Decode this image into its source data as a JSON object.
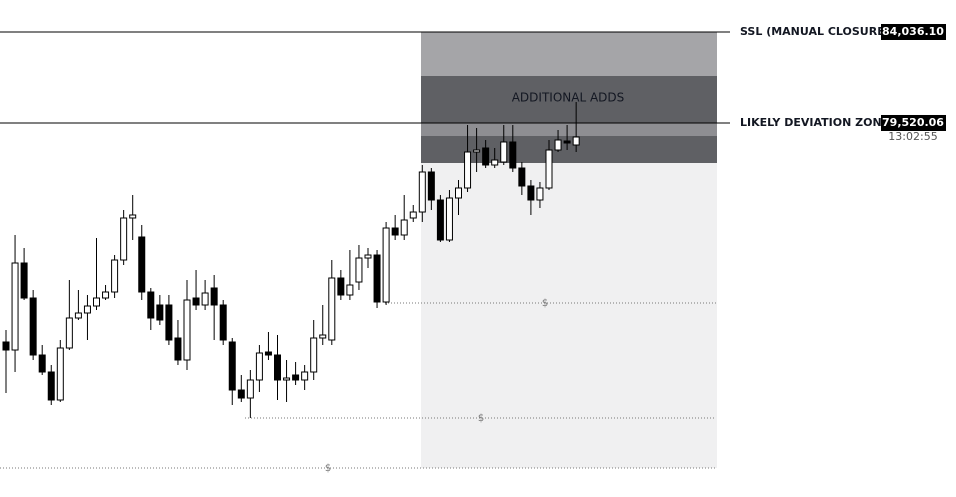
{
  "chart_data": {
    "type": "candlestick",
    "ylim": [
      60958,
      85624
    ],
    "up_color": "#ffffff",
    "down_color": "#000000",
    "open": [
      68651,
      68253,
      72571,
      70834,
      68005,
      67162,
      65772,
      68353,
      69842,
      70090,
      70437,
      70834,
      71132,
      72720,
      74805,
      73862,
      71132,
      70487,
      70487,
      68849,
      67757,
      70834,
      70487,
      71331,
      70487,
      68651,
      66268,
      65871,
      66765,
      68154,
      68005,
      66765,
      67013,
      66765,
      67162,
      68849,
      68750,
      71827,
      70983,
      71628,
      72819,
      72968,
      70636,
      74308,
      73961,
      74805,
      75102,
      77088,
      75698,
      73713,
      75797,
      76294,
      78080,
      78279,
      77435,
      77584,
      78577,
      77286,
      76393,
      75698,
      76294,
      78179,
      78626,
      78428
    ],
    "high": [
      69246,
      73961,
      73316,
      71231,
      68502,
      67509,
      68750,
      71728,
      71231,
      70983,
      73812,
      71479,
      72968,
      75202,
      75946,
      74457,
      71331,
      70983,
      70983,
      69742,
      71728,
      72224,
      71728,
      71976,
      70735,
      68849,
      67013,
      67261,
      68502,
      69147,
      68998,
      67757,
      67658,
      67509,
      69742,
      70487,
      72720,
      72224,
      73216,
      73465,
      73316,
      73216,
      74606,
      74954,
      75946,
      75450,
      77435,
      77286,
      75946,
      76194,
      76691,
      79420,
      79271,
      78676,
      78279,
      79420,
      79420,
      77584,
      76691,
      76591,
      78676,
      79172,
      79420,
      80562
    ],
    "low": [
      66119,
      67162,
      70735,
      67757,
      67013,
      65524,
      65673,
      68253,
      69742,
      68750,
      70239,
      70735,
      70834,
      72472,
      73713,
      70735,
      69246,
      69494,
      68502,
      67509,
      67261,
      70239,
      70239,
      68750,
      68502,
      65524,
      65673,
      64879,
      66169,
      67757,
      65772,
      65673,
      66516,
      66268,
      66765,
      68502,
      68502,
      70735,
      70735,
      71231,
      72323,
      70338,
      70487,
      73713,
      73713,
      74606,
      74606,
      75202,
      73614,
      73614,
      74954,
      76095,
      77088,
      77286,
      77286,
      77435,
      77088,
      75946,
      74954,
      75301,
      76194,
      78080,
      78179,
      78080
    ],
    "close": [
      68253,
      72571,
      70834,
      68005,
      67162,
      65772,
      68353,
      69842,
      70090,
      70437,
      70834,
      71132,
      72720,
      74805,
      74954,
      71132,
      69842,
      69742,
      68750,
      67757,
      70735,
      70487,
      71082,
      70487,
      68750,
      66268,
      65871,
      66765,
      68105,
      68005,
      66765,
      66864,
      66765,
      67162,
      68849,
      68998,
      71827,
      70983,
      71479,
      72819,
      72968,
      70636,
      74308,
      73961,
      74705,
      75102,
      77088,
      75698,
      73713,
      75797,
      76294,
      78080,
      78179,
      77435,
      77683,
      78577,
      77286,
      76393,
      75698,
      76294,
      78179,
      78676,
      78527,
      78825
    ],
    "price_lines": [
      {
        "name": "SSL (MANUAL CLOSURE) -",
        "price": {
          "value": 84036.1,
          "label": "84,036.10"
        }
      },
      {
        "name": "LIKELY DEVIATION ZONE -",
        "price": {
          "value": 79520.06,
          "label": "79,520.06"
        },
        "countdown": "13:02:55"
      }
    ],
    "levels": [
      {
        "label": "$",
        "value": 70586
      },
      {
        "label": "$",
        "value": 64879
      },
      {
        "label": "$",
        "value": 62397
      }
    ],
    "annotations": [
      "ADDITIONAL ADDS"
    ]
  }
}
